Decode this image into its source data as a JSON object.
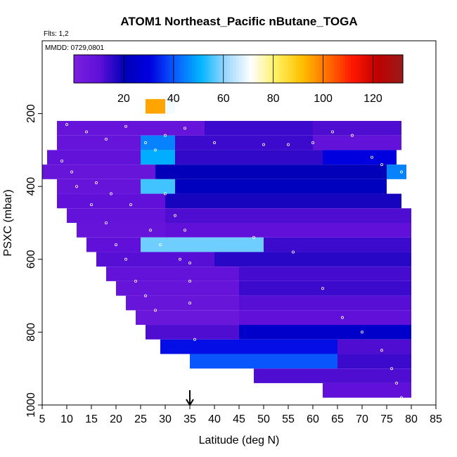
{
  "chart_data": {
    "type": "heatmap",
    "title": "ATOM1 Northeast_Pacific nButane_TOGA",
    "flights_label": "Flts: 1,2",
    "mmdd_label": "MMDD: 0729,0801",
    "xlabel": "Latitude (deg N)",
    "ylabel": "PSXC (mbar)",
    "xlim": [
      5,
      85
    ],
    "ylim": [
      1000,
      0
    ],
    "xticks": [
      "5",
      "10",
      "15",
      "20",
      "25",
      "30",
      "35",
      "40",
      "45",
      "50",
      "55",
      "60",
      "65",
      "70",
      "75",
      "80",
      "85"
    ],
    "yticks": [
      "200",
      "400",
      "600",
      "800",
      "1000"
    ],
    "colorbar": {
      "range": [
        0,
        132
      ],
      "ticks": [
        "20",
        "40",
        "60",
        "80",
        "100",
        "120"
      ],
      "colors": [
        "#7a1fe0",
        "#6010d8",
        "#0000b8",
        "#0000e0",
        "#0a5cff",
        "#00b4ff",
        "#9ad8ff",
        "#ffffff",
        "#fff060",
        "#ffc000",
        "#ff7000",
        "#ff1800",
        "#c00000",
        "#9a1a1a"
      ]
    },
    "arrow_latitude": 35,
    "cells": [
      [
        8,
        38,
        220,
        260,
        8
      ],
      [
        38,
        60,
        220,
        260,
        14
      ],
      [
        60,
        78,
        220,
        260,
        12
      ],
      [
        8,
        25,
        260,
        300,
        8
      ],
      [
        25,
        32,
        260,
        300,
        45
      ],
      [
        32,
        60,
        260,
        300,
        14
      ],
      [
        60,
        78,
        260,
        300,
        9
      ],
      [
        6,
        25,
        300,
        340,
        9
      ],
      [
        25,
        32,
        300,
        340,
        50
      ],
      [
        32,
        62,
        300,
        340,
        15
      ],
      [
        62,
        77,
        300,
        340,
        30
      ],
      [
        5,
        28,
        340,
        380,
        7
      ],
      [
        28,
        75,
        340,
        380,
        20
      ],
      [
        75,
        79,
        340,
        380,
        45
      ],
      [
        8,
        25,
        380,
        420,
        8
      ],
      [
        25,
        32,
        380,
        420,
        55
      ],
      [
        32,
        75,
        380,
        420,
        22
      ],
      [
        8,
        30,
        420,
        460,
        10
      ],
      [
        30,
        78,
        420,
        460,
        18
      ],
      [
        10,
        30,
        460,
        500,
        9
      ],
      [
        30,
        80,
        460,
        500,
        12
      ],
      [
        12,
        30,
        500,
        540,
        8
      ],
      [
        30,
        80,
        500,
        540,
        10
      ],
      [
        14,
        25,
        540,
        580,
        10
      ],
      [
        25,
        50,
        540,
        580,
        58
      ],
      [
        50,
        80,
        540,
        580,
        14
      ],
      [
        16,
        40,
        580,
        620,
        11
      ],
      [
        40,
        80,
        580,
        620,
        16
      ],
      [
        18,
        45,
        620,
        660,
        9
      ],
      [
        45,
        80,
        620,
        660,
        13
      ],
      [
        20,
        45,
        660,
        700,
        8
      ],
      [
        45,
        80,
        660,
        700,
        14
      ],
      [
        22,
        45,
        700,
        740,
        7
      ],
      [
        45,
        80,
        700,
        740,
        11
      ],
      [
        24,
        45,
        740,
        780,
        6
      ],
      [
        45,
        80,
        740,
        780,
        10
      ],
      [
        26,
        45,
        780,
        820,
        12
      ],
      [
        45,
        80,
        780,
        820,
        25
      ],
      [
        29,
        65,
        820,
        860,
        32
      ],
      [
        65,
        80,
        820,
        860,
        12
      ],
      [
        35,
        65,
        860,
        900,
        40
      ],
      [
        65,
        80,
        860,
        900,
        14
      ],
      [
        48,
        80,
        900,
        940,
        12
      ],
      [
        62,
        80,
        940,
        980,
        10
      ],
      [
        26,
        30,
        160,
        200,
        95
      ],
      [
        30,
        32,
        160,
        200,
        70
      ]
    ],
    "points": [
      [
        10,
        230
      ],
      [
        14,
        250
      ],
      [
        18,
        270
      ],
      [
        22,
        235
      ],
      [
        26,
        280
      ],
      [
        28,
        300
      ],
      [
        30,
        260
      ],
      [
        34,
        240
      ],
      [
        40,
        280
      ],
      [
        50,
        285
      ],
      [
        55,
        285
      ],
      [
        60,
        280
      ],
      [
        64,
        250
      ],
      [
        68,
        260
      ],
      [
        72,
        320
      ],
      [
        74,
        340
      ],
      [
        78,
        360
      ],
      [
        12,
        400
      ],
      [
        15,
        450
      ],
      [
        18,
        500
      ],
      [
        20,
        560
      ],
      [
        22,
        600
      ],
      [
        24,
        660
      ],
      [
        26,
        700
      ],
      [
        28,
        740
      ],
      [
        30,
        420
      ],
      [
        32,
        480
      ],
      [
        34,
        520
      ],
      [
        35,
        610
      ],
      [
        35,
        660
      ],
      [
        35,
        720
      ],
      [
        36,
        820
      ],
      [
        48,
        540
      ],
      [
        56,
        580
      ],
      [
        62,
        680
      ],
      [
        66,
        760
      ],
      [
        70,
        800
      ],
      [
        74,
        850
      ],
      [
        76,
        900
      ],
      [
        77,
        940
      ],
      [
        78,
        980
      ],
      [
        9,
        330
      ],
      [
        11,
        360
      ],
      [
        16,
        390
      ],
      [
        19,
        420
      ],
      [
        23,
        450
      ],
      [
        27,
        520
      ],
      [
        29,
        560
      ],
      [
        33,
        600
      ]
    ]
  }
}
